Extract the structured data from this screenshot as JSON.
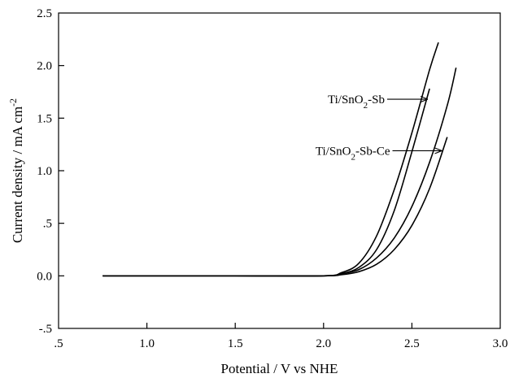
{
  "chart_data": {
    "type": "line",
    "title": "",
    "xlabel": "Potential / V vs NHE",
    "ylabel_main": "Current density / mA cm",
    "ylabel_sup": "-2",
    "xlim": [
      0.5,
      3.0
    ],
    "ylim": [
      -0.5,
      2.5
    ],
    "xticks": [
      0.5,
      1.0,
      1.5,
      2.0,
      2.5,
      3.0
    ],
    "xtick_labels": [
      ".5",
      "1.0",
      "1.5",
      "2.0",
      "2.5",
      "3.0"
    ],
    "yticks": [
      -0.5,
      0.0,
      0.5,
      1.0,
      1.5,
      2.0,
      2.5
    ],
    "ytick_labels": [
      "-.5",
      "0.0",
      ".5",
      "1.0",
      "1.5",
      "2.0",
      "2.5"
    ],
    "grid": false,
    "series": [
      {
        "curves": [
          {
            "x": [
              0.75,
              1.5,
              2.0,
              2.1,
              2.2,
              2.3,
              2.4,
              2.5,
              2.6,
              2.65
            ],
            "y": [
              0.0,
              0.0,
              0.0,
              0.03,
              0.12,
              0.38,
              0.82,
              1.36,
              1.96,
              2.22
            ]
          },
          {
            "x": [
              0.75,
              1.5,
              2.0,
              2.1,
              2.2,
              2.3,
              2.4,
              2.5,
              2.6
            ],
            "y": [
              0.0,
              0.0,
              0.0,
              0.02,
              0.08,
              0.25,
              0.62,
              1.18,
              1.78
            ]
          }
        ]
      },
      {
        "curves": [
          {
            "x": [
              0.75,
              1.5,
              2.0,
              2.1,
              2.2,
              2.3,
              2.4,
              2.5,
              2.6,
              2.7,
              2.75
            ],
            "y": [
              0.0,
              0.0,
              0.0,
              0.02,
              0.06,
              0.17,
              0.36,
              0.66,
              1.08,
              1.62,
              1.98
            ]
          },
          {
            "x": [
              0.75,
              1.5,
              2.0,
              2.1,
              2.2,
              2.3,
              2.4,
              2.5,
              2.6,
              2.7
            ],
            "y": [
              0.0,
              0.0,
              0.0,
              0.01,
              0.04,
              0.11,
              0.25,
              0.48,
              0.83,
              1.32
            ]
          }
        ]
      }
    ],
    "annotations": [
      {
        "main": "Ti/SnO",
        "sub": "2",
        "rest": "-Sb",
        "arrow_from": [
          2.36,
          1.68
        ],
        "arrow_to": [
          2.59,
          1.68
        ]
      },
      {
        "main": "Ti/SnO",
        "sub": "2",
        "rest": "-Sb-Ce",
        "arrow_from": [
          2.39,
          1.19
        ],
        "arrow_to": [
          2.67,
          1.19
        ]
      }
    ]
  }
}
